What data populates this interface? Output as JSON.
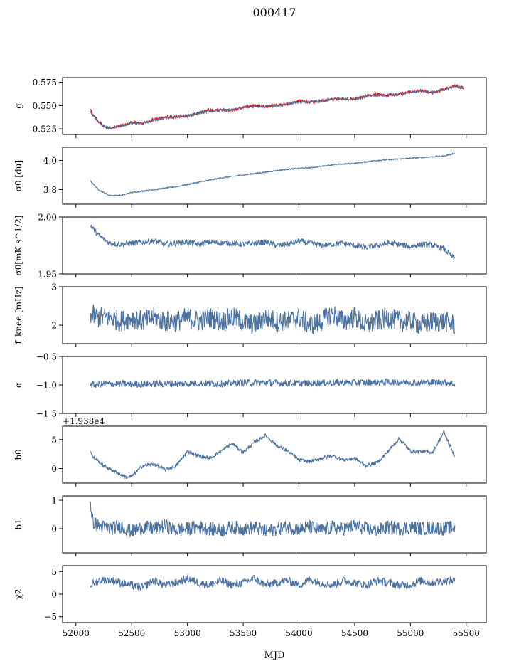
{
  "figure": {
    "title": "000417",
    "xlabel": "MJD",
    "xticks": [
      52000,
      52500,
      53000,
      53500,
      54000,
      54500,
      55000,
      55500
    ],
    "xlim": [
      51880,
      55680
    ]
  },
  "chart_data": [
    {
      "type": "line",
      "ylabel": "g",
      "ylim": [
        0.519,
        0.58
      ],
      "yticks": [
        0.525,
        0.55,
        0.575
      ],
      "ytick_labels": [
        "0.525",
        "0.550",
        "0.575"
      ],
      "x": [
        52130,
        52150,
        52200,
        52250,
        52300,
        52400,
        52500,
        52600,
        52700,
        52800,
        52900,
        53000,
        53100,
        53200,
        53300,
        53400,
        53500,
        53600,
        53700,
        53800,
        53900,
        54000,
        54100,
        54200,
        54300,
        54400,
        54500,
        54600,
        54700,
        54800,
        54900,
        55000,
        55100,
        55200,
        55300,
        55400,
        55480
      ],
      "series": [
        {
          "name": "",
          "color": "#ff0000",
          "values": [
            0.546,
            0.541,
            0.533,
            0.528,
            0.526,
            0.528,
            0.532,
            0.531,
            0.535,
            0.538,
            0.538,
            0.539,
            0.542,
            0.545,
            0.545,
            0.545,
            0.548,
            0.55,
            0.549,
            0.55,
            0.552,
            0.555,
            0.554,
            0.555,
            0.557,
            0.557,
            0.557,
            0.56,
            0.562,
            0.561,
            0.562,
            0.565,
            0.566,
            0.564,
            0.567,
            0.571,
            0.569
          ]
        },
        {
          "name": "",
          "color": "#4c72a0",
          "values": [
            0.543,
            0.54,
            0.533,
            0.528,
            0.526,
            0.528,
            0.531,
            0.531,
            0.534,
            0.537,
            0.538,
            0.539,
            0.542,
            0.544,
            0.545,
            0.545,
            0.548,
            0.549,
            0.549,
            0.55,
            0.552,
            0.554,
            0.554,
            0.555,
            0.557,
            0.557,
            0.557,
            0.56,
            0.561,
            0.561,
            0.562,
            0.564,
            0.566,
            0.564,
            0.567,
            0.571,
            0.569
          ]
        }
      ]
    },
    {
      "type": "line",
      "ylabel": "σ0 [du]",
      "ylim": [
        3.7,
        4.09
      ],
      "yticks": [
        3.8,
        4.0
      ],
      "ytick_labels": [
        "3.8",
        "4.0"
      ],
      "x": [
        52130,
        52200,
        52300,
        52400,
        52500,
        52700,
        52900,
        53100,
        53300,
        53500,
        53700,
        53900,
        54100,
        54300,
        54500,
        54700,
        54900,
        55100,
        55300,
        55400
      ],
      "series": [
        {
          "name": "",
          "color": "#4c72a0",
          "values": [
            3.86,
            3.8,
            3.76,
            3.76,
            3.78,
            3.8,
            3.82,
            3.85,
            3.88,
            3.9,
            3.92,
            3.94,
            3.95,
            3.97,
            3.98,
            4.0,
            4.01,
            4.02,
            4.03,
            4.05
          ]
        }
      ]
    },
    {
      "type": "line",
      "ylabel": "σ0[mK s^1/2]",
      "ylim": [
        1.95,
        2.0
      ],
      "yticks": [
        1.95,
        2.0
      ],
      "ytick_labels": [
        "1.95",
        "2.00"
      ],
      "x": [
        52130,
        52200,
        52300,
        52400,
        52500,
        52600,
        52700,
        52800,
        52900,
        53000,
        53100,
        53200,
        53300,
        53400,
        53500,
        53600,
        53700,
        53800,
        53900,
        54000,
        54100,
        54200,
        54300,
        54400,
        54500,
        54600,
        54700,
        54800,
        54900,
        55000,
        55100,
        55200,
        55300,
        55400
      ],
      "series": [
        {
          "name": "",
          "color": "#4c72a0",
          "values": [
            1.993,
            1.984,
            1.977,
            1.976,
            1.977,
            1.978,
            1.979,
            1.976,
            1.977,
            1.978,
            1.976,
            1.978,
            1.977,
            1.977,
            1.976,
            1.977,
            1.978,
            1.975,
            1.976,
            1.979,
            1.977,
            1.975,
            1.976,
            1.977,
            1.975,
            1.973,
            1.975,
            1.977,
            1.976,
            1.974,
            1.976,
            1.975,
            1.972,
            1.963
          ]
        }
      ]
    },
    {
      "type": "line",
      "ylabel": "f_knee [mHz]",
      "ylim": [
        1.52,
        3.0
      ],
      "yticks": [
        2,
        3
      ],
      "ytick_labels": [
        "2",
        "3"
      ],
      "x": [
        52130,
        52200,
        52300,
        52400,
        52500,
        52600,
        52700,
        52800,
        52900,
        53000,
        53100,
        53200,
        53300,
        53400,
        53500,
        53600,
        53700,
        53800,
        53900,
        54000,
        54100,
        54200,
        54300,
        54400,
        54500,
        54600,
        54700,
        54800,
        54900,
        55000,
        55100,
        55200,
        55300,
        55400
      ],
      "series": [
        {
          "name": "",
          "color": "#4c72a0",
          "values": [
            2.3,
            2.2,
            2.2,
            2.1,
            2.2,
            2.1,
            2.2,
            2.1,
            2.1,
            2.2,
            2.1,
            2.2,
            2.1,
            2.2,
            2.1,
            2.0,
            2.2,
            2.1,
            2.1,
            2.2,
            2.0,
            2.1,
            2.3,
            2.1,
            2.2,
            2.0,
            2.1,
            2.2,
            2.1,
            2.1,
            2.0,
            2.1,
            2.1,
            2.0
          ]
        }
      ]
    },
    {
      "type": "line",
      "ylabel": "α",
      "ylim": [
        -1.5,
        -0.5
      ],
      "yticks": [
        -1.5,
        -1.0,
        -0.5
      ],
      "ytick_labels": [
        "−1.5",
        "−1.0",
        "−0.5"
      ],
      "x": [
        52130,
        52300,
        52500,
        52700,
        52900,
        53100,
        53300,
        53500,
        53700,
        53900,
        54100,
        54300,
        54500,
        54700,
        54900,
        55100,
        55300,
        55400
      ],
      "series": [
        {
          "name": "",
          "color": "#4c72a0",
          "values": [
            -1.0,
            -0.98,
            -0.99,
            -0.98,
            -0.98,
            -0.97,
            -0.98,
            -0.96,
            -0.96,
            -0.97,
            -0.97,
            -0.96,
            -0.96,
            -0.95,
            -0.95,
            -0.96,
            -0.95,
            -0.98
          ]
        }
      ]
    },
    {
      "type": "line",
      "ylabel": "b0",
      "offset_label": "+1.938e4",
      "ylim": [
        -2.5,
        7.3
      ],
      "yticks": [
        0,
        5
      ],
      "ytick_labels": [
        "0",
        "5"
      ],
      "x": [
        52130,
        52150,
        52250,
        52350,
        52450,
        52500,
        52600,
        52700,
        52800,
        52900,
        53000,
        53100,
        53200,
        53300,
        53400,
        53500,
        53600,
        53700,
        53800,
        53900,
        54000,
        54100,
        54200,
        54300,
        54400,
        54500,
        54600,
        54700,
        54800,
        54900,
        55000,
        55100,
        55200,
        55300,
        55330,
        55400
      ],
      "series": [
        {
          "name": "",
          "color": "#4c72a0",
          "values": [
            3.0,
            2.0,
            0.5,
            -0.5,
            -1.5,
            -1.3,
            0.5,
            0.8,
            -0.2,
            0.5,
            3.0,
            2.2,
            1.8,
            3.0,
            4.3,
            2.8,
            4.5,
            5.7,
            4.0,
            3.0,
            1.5,
            1.2,
            1.8,
            2.2,
            1.5,
            1.8,
            0.5,
            1.0,
            3.0,
            5.2,
            3.0,
            3.0,
            2.8,
            6.3,
            5.0,
            2.0
          ]
        }
      ]
    },
    {
      "type": "line",
      "ylabel": "b1",
      "ylim": [
        -0.85,
        1.15
      ],
      "yticks": [
        0,
        1
      ],
      "ytick_labels": [
        "0",
        "1"
      ],
      "x": [
        52130,
        52140,
        52200,
        52300,
        52400,
        52500,
        52600,
        52700,
        52800,
        52900,
        53000,
        53100,
        53200,
        53300,
        53400,
        53500,
        53600,
        53700,
        53800,
        53900,
        54000,
        54100,
        54200,
        54300,
        54400,
        54500,
        54600,
        54700,
        54800,
        54900,
        55000,
        55100,
        55200,
        55300,
        55400
      ],
      "series": [
        {
          "name": "",
          "color": "#4c72a0",
          "values": [
            1.1,
            0.3,
            0.1,
            0.0,
            0.1,
            -0.1,
            0.05,
            0.0,
            0.1,
            -0.05,
            0.0,
            0.05,
            0.0,
            -0.05,
            0.05,
            0.0,
            0.05,
            -0.1,
            0.0,
            0.05,
            0.0,
            0.05,
            -0.05,
            0.05,
            0.0,
            0.1,
            0.0,
            -0.05,
            0.05,
            0.0,
            0.05,
            0.0,
            0.05,
            0.0,
            0.05
          ]
        }
      ]
    },
    {
      "type": "line",
      "ylabel": "χ2",
      "ylim": [
        -6.3,
        6.3
      ],
      "yticks": [
        -5,
        0,
        5
      ],
      "ytick_labels": [
        "−5",
        "0",
        "5"
      ],
      "x": [
        52130,
        52200,
        52300,
        52400,
        52500,
        52600,
        52700,
        52800,
        52900,
        53000,
        53100,
        53200,
        53300,
        53400,
        53500,
        53600,
        53700,
        53800,
        53900,
        54000,
        54100,
        54200,
        54300,
        54400,
        54500,
        54600,
        54700,
        54800,
        54900,
        55000,
        55100,
        55200,
        55300,
        55400
      ],
      "series": [
        {
          "name": "",
          "color": "#4c72a0",
          "values": [
            2.0,
            3.0,
            3.2,
            2.5,
            2.0,
            1.5,
            3.0,
            2.0,
            2.5,
            3.5,
            2.5,
            2.0,
            3.0,
            2.0,
            2.5,
            3.5,
            2.0,
            2.5,
            3.0,
            2.0,
            3.2,
            2.5,
            2.0,
            3.0,
            2.5,
            2.0,
            3.0,
            2.5,
            2.0,
            2.0,
            3.0,
            2.5,
            3.0,
            3.0
          ]
        }
      ]
    }
  ]
}
